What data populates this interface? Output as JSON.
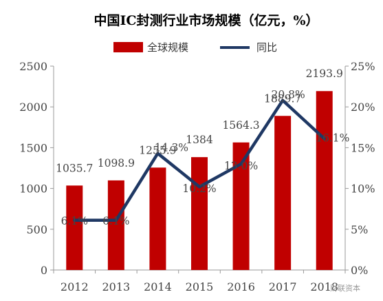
{
  "chart_data": {
    "type": "bar+line",
    "title": "中国IC封测行业市场规模（亿元，%）",
    "categories": [
      "2012",
      "2013",
      "2014",
      "2015",
      "2016",
      "2017",
      "2018"
    ],
    "series": [
      {
        "name": "全球规模",
        "type": "bar",
        "axis": "left",
        "color": "#C00000",
        "values": [
          1035.7,
          1098.9,
          1255.9,
          1384,
          1564.3,
          1889.7,
          2193.9
        ],
        "labels": [
          "1035.7",
          "1098.9",
          "1255.9",
          "1384",
          "1564.3",
          "1889.7",
          "2193.9"
        ]
      },
      {
        "name": "同比",
        "type": "line",
        "axis": "right",
        "color": "#1F3864",
        "values": [
          6.1,
          6.1,
          14.3,
          10.2,
          13.0,
          20.8,
          16.1
        ],
        "labels": [
          "6.1%",
          "6.1%",
          "14.3%",
          "10.2%",
          "13.0%",
          "20.8%",
          "16.1%"
        ]
      }
    ],
    "y_left": {
      "min": 0,
      "max": 2500,
      "ticks": [
        "0",
        "500",
        "1000",
        "1500",
        "2000",
        "2500"
      ]
    },
    "y_right": {
      "min": 0,
      "max": 25,
      "ticks": [
        "0%",
        "5%",
        "10%",
        "15%",
        "20%",
        "25%"
      ]
    },
    "legend_position": "top-center",
    "grid": false
  },
  "watermark": "财联资本",
  "colors": {
    "bar": "#C00000",
    "line": "#1F3864",
    "axis": "#999999",
    "text": "#444444"
  }
}
